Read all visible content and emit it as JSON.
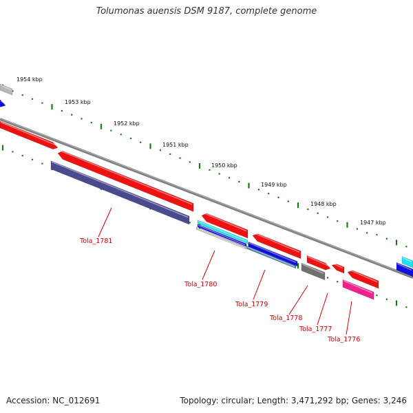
{
  "title": "Tolumonas auensis DSM 9187, complete genome",
  "accession": "Accession: NC_012691",
  "summary": "Topology: circular; Length: 3,471,292 bp; Genes: 3,246",
  "scale_labels": [
    "1954 kbp",
    "1953 kbp",
    "1952 kbp",
    "1951 kbp",
    "1950 kbp",
    "1949 kbp",
    "1948 kbp",
    "1947 kbp"
  ],
  "gene_labels": [
    "Tola_1781",
    "Tola_1780",
    "Tola_1779",
    "Tola_1778",
    "Tola_1777",
    "Tola_1776"
  ],
  "colors": {
    "backbone": "#808080",
    "tick": "#1a7a1a",
    "label": "#cc0000",
    "red": "#ee1111",
    "navy": "#4a4a90",
    "blue": "#1010dd",
    "cyan": "#22e0ee",
    "gray": "#707070",
    "light_gray": "#b8b8b8",
    "magenta": "#ee2288",
    "steel": "#4a80b0"
  }
}
